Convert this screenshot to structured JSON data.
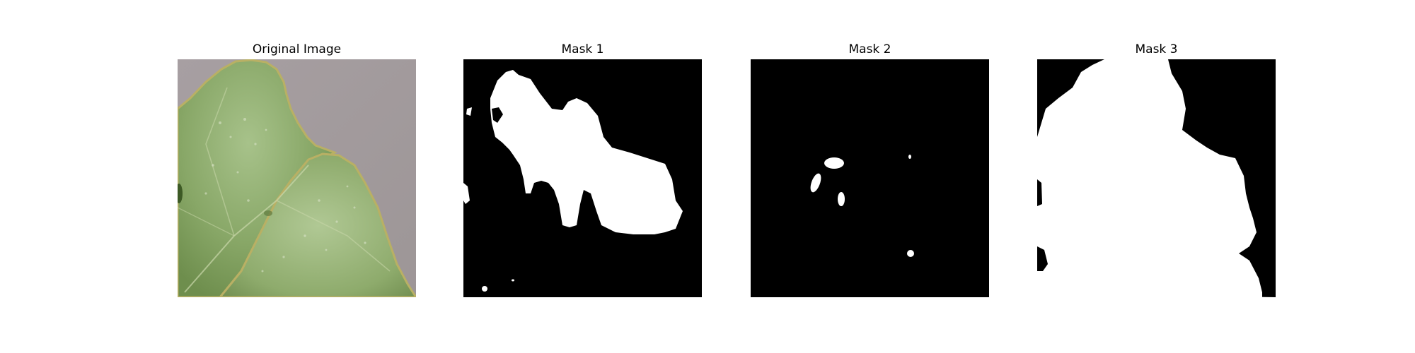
{
  "figure": {
    "background": "#ffffff",
    "panels": [
      {
        "id": "original",
        "title": "Original Image",
        "kind": "leaf-photo"
      },
      {
        "id": "mask-1",
        "title": "Mask 1",
        "kind": "binary-mask",
        "foreground": "#ffffff",
        "background": "#000000"
      },
      {
        "id": "mask-2",
        "title": "Mask 2",
        "kind": "binary-mask",
        "foreground": "#ffffff",
        "background": "#000000"
      },
      {
        "id": "mask-3",
        "title": "Mask 3",
        "kind": "binary-mask",
        "foreground": "#ffffff",
        "background": "#000000"
      }
    ]
  },
  "colors": {
    "leaf_green": "#8fae6a",
    "leaf_dark": "#6f8f4e",
    "leaf_edge": "#b5ad5a",
    "backdrop_gray": "#a39c9f",
    "mask_white": "#ffffff",
    "mask_black": "#000000"
  }
}
